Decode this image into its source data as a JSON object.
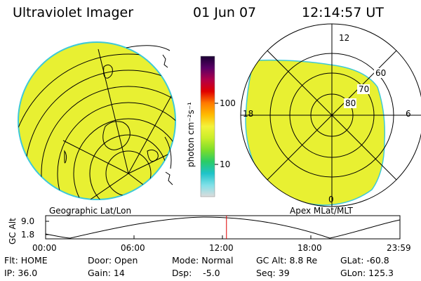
{
  "header": {
    "instrument": "Ultraviolet Imager",
    "date": "01 Jun 07",
    "time": "12:14:57 UT"
  },
  "colorbar": {
    "unit_label": "photon cm⁻²s⁻¹",
    "tick_labels": [
      "100",
      "10"
    ],
    "scale": "log",
    "colors": [
      "#1a0033",
      "#5a0066",
      "#b0004a",
      "#e00000",
      "#ff7a00",
      "#ffbb00",
      "#f3f33b",
      "#c9ee2a",
      "#7ede2a",
      "#2acc66",
      "#1ec3c8",
      "#7fe0e8",
      "#dcdcdc"
    ]
  },
  "geo_map": {
    "caption": "Geographic Lat/Lon",
    "fill_color": "#e8f032",
    "edge_color": "#3ec9d8"
  },
  "polar_map": {
    "caption": "Apex MLat/MLT",
    "mlt_labels": [
      "12",
      "18",
      "6",
      "0"
    ],
    "mlat_labels": [
      "60",
      "70",
      "80"
    ],
    "fill_color": "#e8f032"
  },
  "orbit_plot": {
    "y_label": "GC Alt",
    "y_ticks": [
      "9.0",
      "1.8"
    ],
    "x_ticks": [
      "00:00",
      "06:00",
      "12:00",
      "18:00",
      "23:59"
    ],
    "marker_color": "#dd0000",
    "current_time_hours": 12.25
  },
  "status": {
    "flt": "Flt: HOME",
    "ip": "IP: 36.0",
    "door": "Door: Open",
    "gain": "Gain: 14",
    "mode": "Mode: Normal",
    "dsp": "Dsp:    -5.0",
    "gc_alt": "GC Alt: 8.8 Re",
    "seq": "Seq: 39",
    "glat": "GLat: -60.8",
    "glon": "GLon: 125.3"
  }
}
